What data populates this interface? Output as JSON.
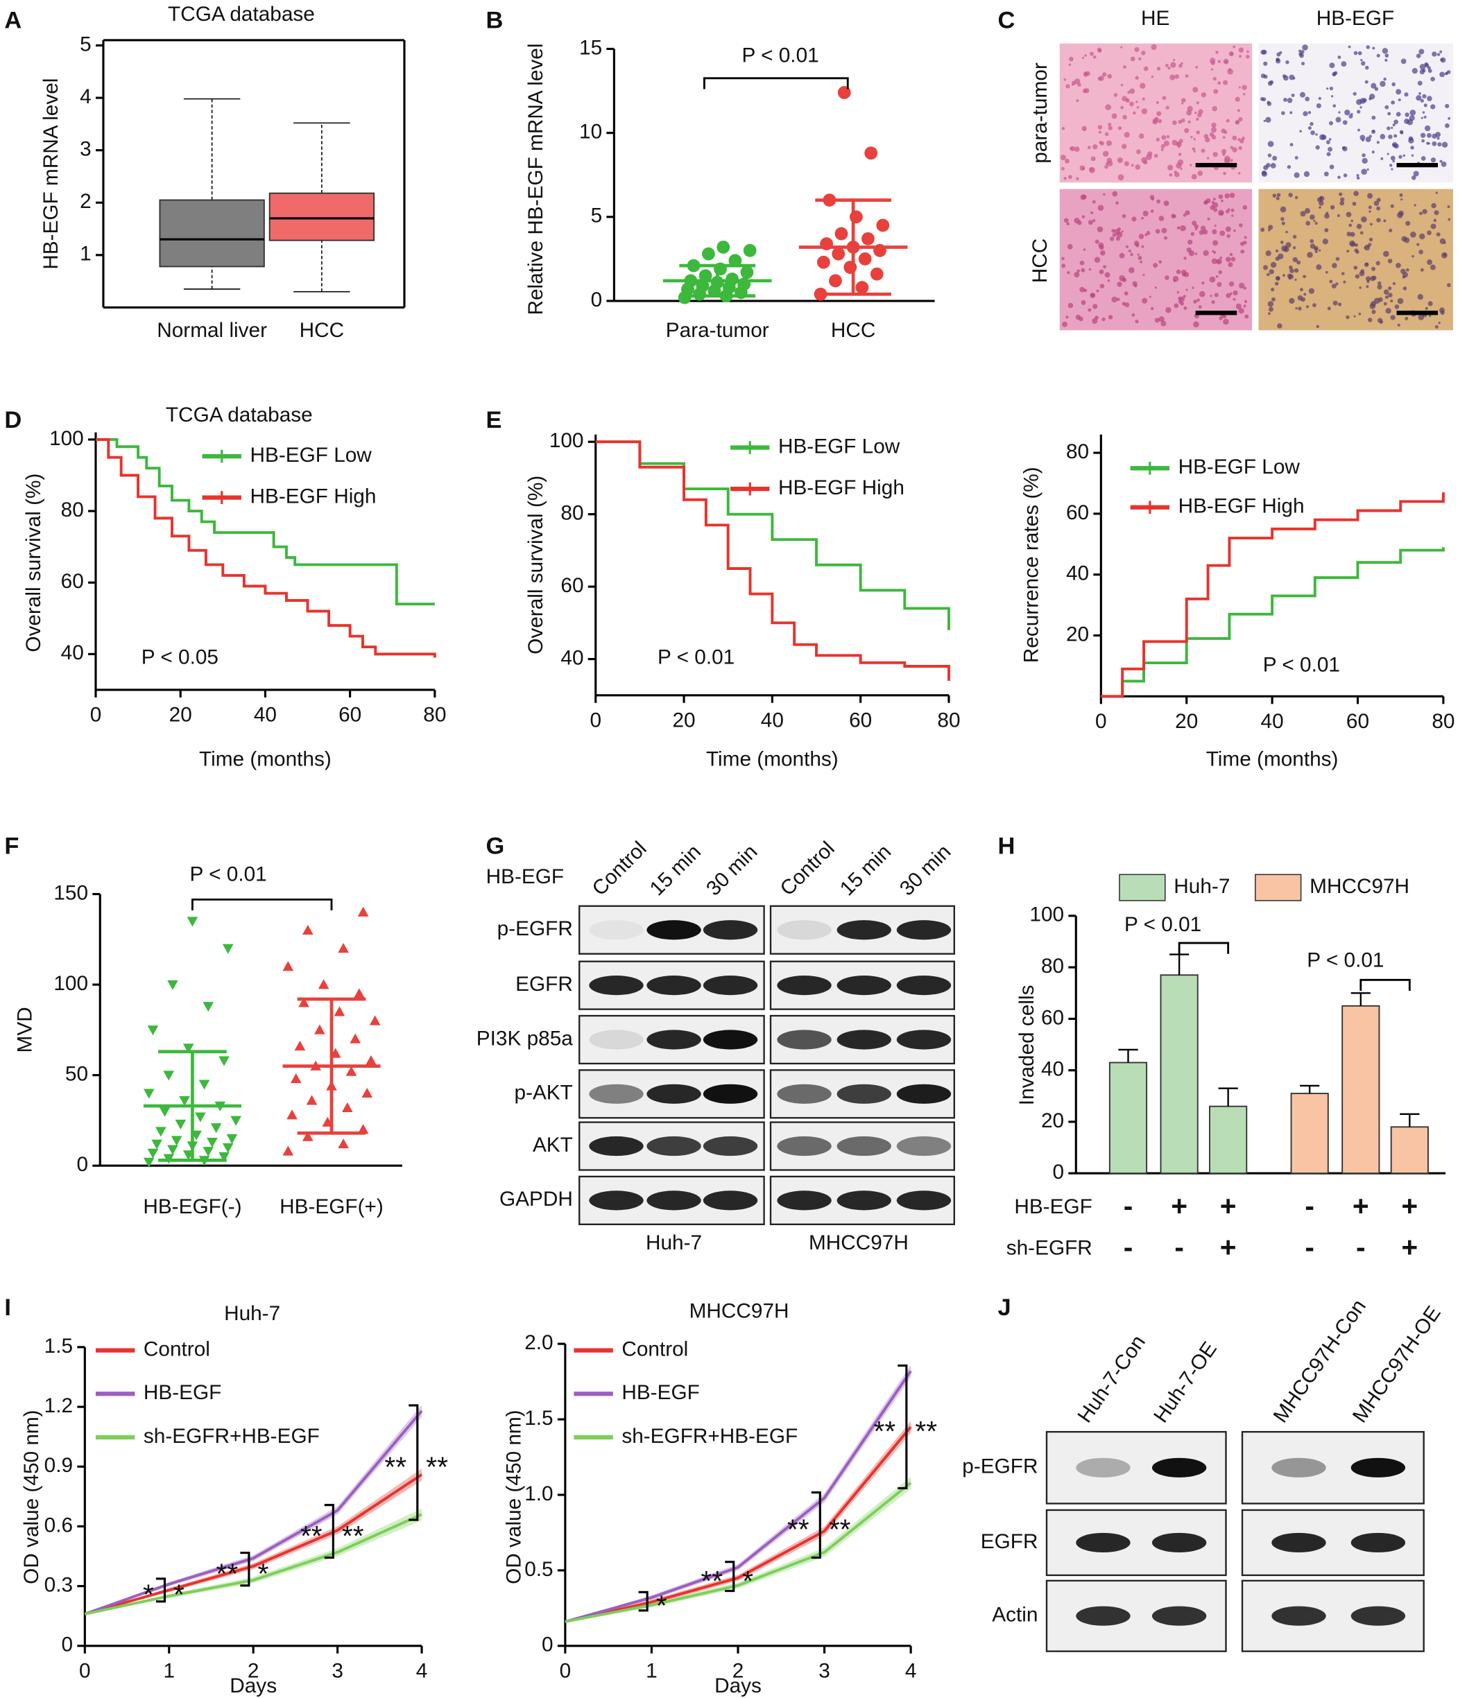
{
  "panel_labels": [
    "A",
    "B",
    "C",
    "D",
    "E",
    "F",
    "G",
    "H",
    "I",
    "J"
  ],
  "histology": {
    "columns": [
      "HE",
      "HB-EGF"
    ],
    "rows": [
      "para-tumor",
      "HCC"
    ]
  },
  "blots": [
    {
      "treatment": "HB-EGF",
      "lanes": [
        "Control",
        "15 min",
        "30 min",
        "Control",
        "15 min",
        "30 min"
      ],
      "rows": [
        "p-EGFR",
        "EGFR",
        "PI3K p85a",
        "p-AKT",
        "AKT",
        "GAPDH"
      ],
      "cells": [
        "Huh-7",
        "MHCC97H"
      ]
    },
    {
      "lanes": [
        "Huh-7-Con",
        "Huh-7-OE",
        "MHCC97H-Con",
        "MHCC97H-OE"
      ],
      "rows": [
        "p-EGFR",
        "EGFR",
        "Actin"
      ]
    }
  ],
  "chart_data": [
    {
      "type": "box",
      "title": "TCGA database",
      "y_label": "HB-EGF mRNA level",
      "categories": [
        "Normal liver",
        "HCC"
      ],
      "boxes": [
        {
          "color": "#7f7f7f",
          "min": 0.35,
          "q1": 0.78,
          "median": 1.3,
          "q3": 2.05,
          "max": 3.98
        },
        {
          "color": "#f06a6a",
          "min": 0.3,
          "q1": 1.28,
          "median": 1.7,
          "q3": 2.18,
          "max": 3.52
        }
      ],
      "ylim": [
        0,
        5.1
      ],
      "yticks": [
        1,
        2,
        3,
        4,
        5
      ]
    },
    {
      "type": "strip",
      "y_label": "Relative HB-EGF mRNA level",
      "categories": [
        "Para-tumor",
        "HCC"
      ],
      "annotations": [
        "P < 0.01"
      ],
      "series": [
        {
          "color": "#3cb83c",
          "marker": "circle",
          "values": [
            0.2,
            0.3,
            0.4,
            0.5,
            0.6,
            0.7,
            0.8,
            0.9,
            1.0,
            1.1,
            1.2,
            1.3,
            1.5,
            1.7,
            1.9,
            2.1,
            2.4,
            2.8,
            3.0,
            3.2
          ],
          "mean": 1.2,
          "sd": 0.9
        },
        {
          "color": "#e8413c",
          "marker": "circle",
          "values": [
            0.4,
            0.8,
            1.2,
            1.6,
            2.0,
            2.3,
            2.5,
            2.8,
            3.0,
            3.2,
            3.4,
            3.7,
            4.0,
            4.5,
            5.0,
            6.0,
            8.8,
            12.4
          ],
          "mean": 3.2,
          "sd": 2.8
        }
      ],
      "ylim": [
        0,
        15
      ],
      "yticks": [
        0,
        5,
        10,
        15
      ]
    },
    {
      "type": "line",
      "step": true,
      "title": "TCGA database",
      "x_label": "Time (months)",
      "y_label": "Overall survival (%)",
      "annotations": [
        "P < 0.05"
      ],
      "series": [
        {
          "name": "HB-EGF Low",
          "color": "#3cb83c",
          "x": [
            0,
            5,
            10,
            12,
            15,
            18,
            22,
            25,
            28,
            40,
            42,
            45,
            47,
            70,
            71,
            80
          ],
          "values": [
            100,
            98,
            95,
            92,
            87,
            83,
            80,
            77,
            74,
            74,
            70,
            67,
            65,
            65,
            54,
            54
          ]
        },
        {
          "name": "HB-EGF High",
          "color": "#e8332d",
          "x": [
            0,
            3,
            6,
            10,
            14,
            18,
            22,
            26,
            30,
            35,
            40,
            45,
            50,
            55,
            60,
            63,
            66,
            80
          ],
          "values": [
            100,
            95,
            90,
            84,
            78,
            73,
            69,
            65,
            62,
            59,
            57,
            55,
            52,
            48,
            45,
            42,
            40,
            39
          ]
        }
      ],
      "xlim": [
        0,
        80
      ],
      "xticks": [
        0,
        20,
        40,
        60,
        80
      ],
      "ylim": [
        30,
        102
      ],
      "yticks": [
        40,
        60,
        80,
        100
      ]
    },
    {
      "type": "line",
      "step": true,
      "x_label": "Time (months)",
      "y_label": "Overall survival (%)",
      "annotations": [
        "P < 0.01"
      ],
      "series": [
        {
          "name": "HB-EGF Low",
          "color": "#3cb83c",
          "x": [
            0,
            4,
            10,
            20,
            30,
            40,
            50,
            60,
            70,
            80
          ],
          "values": [
            100,
            100,
            94,
            87,
            80,
            73,
            66,
            59,
            54,
            48
          ]
        },
        {
          "name": "HB-EGF High",
          "color": "#e8332d",
          "x": [
            0,
            4,
            10,
            20,
            25,
            30,
            35,
            40,
            45,
            50,
            60,
            70,
            80
          ],
          "values": [
            100,
            100,
            93,
            84,
            77,
            65,
            58,
            50,
            44,
            41,
            39,
            38,
            34
          ]
        }
      ],
      "xlim": [
        0,
        80
      ],
      "xticks": [
        0,
        20,
        40,
        60,
        80
      ],
      "ylim": [
        30,
        102
      ],
      "yticks": [
        40,
        60,
        80,
        100
      ]
    },
    {
      "type": "line",
      "step": true,
      "x_label": "Time (months)",
      "y_label": "Recurrence rates (%)",
      "annotations": [
        "P < 0.01"
      ],
      "series": [
        {
          "name": "HB-EGF Low",
          "color": "#3cb83c",
          "x": [
            0,
            5,
            10,
            20,
            30,
            40,
            50,
            60,
            70,
            80
          ],
          "values": [
            0,
            5,
            11,
            19,
            27,
            33,
            39,
            44,
            48,
            49
          ]
        },
        {
          "name": "HB-EGF High",
          "color": "#e8332d",
          "x": [
            0,
            5,
            10,
            20,
            25,
            30,
            40,
            50,
            60,
            70,
            80
          ],
          "values": [
            0,
            9,
            18,
            32,
            43,
            52,
            55,
            58,
            61,
            64,
            67
          ]
        }
      ],
      "xlim": [
        0,
        80
      ],
      "xticks": [
        0,
        20,
        40,
        60,
        80
      ],
      "ylim": [
        0,
        86
      ],
      "yticks": [
        20,
        40,
        60,
        80
      ]
    },
    {
      "type": "strip",
      "y_label": "MVD",
      "categories": [
        "HB-EGF(-)",
        "HB-EGF(+)"
      ],
      "annotations": [
        "P < 0.01"
      ],
      "series": [
        {
          "color": "#3cb83c",
          "marker": "triangle-down",
          "values": [
            2,
            3,
            4,
            5,
            6,
            7,
            8,
            9,
            10,
            11,
            12,
            13,
            14,
            15,
            17,
            19,
            21,
            23,
            25,
            27,
            30,
            33,
            36,
            40,
            45,
            50,
            58,
            65,
            75,
            88,
            100,
            120,
            135
          ],
          "mean": 33,
          "sd": 30
        },
        {
          "color": "#e8413c",
          "marker": "triangle-up",
          "values": [
            8,
            12,
            16,
            20,
            24,
            28,
            32,
            36,
            40,
            44,
            48,
            52,
            55,
            58,
            62,
            66,
            70,
            75,
            80,
            85,
            90,
            95,
            100,
            110,
            120,
            130,
            140
          ],
          "mean": 55,
          "sd": 37
        }
      ],
      "ylim": [
        0,
        150
      ],
      "yticks": [
        0,
        50,
        100,
        150
      ]
    },
    {
      "type": "bar",
      "y_label": "Invaded cells",
      "annotations": [
        "P < 0.01",
        "P < 0.01"
      ],
      "series": [
        {
          "name": "Huh-7",
          "color": "#b9ddb6",
          "values": [
            43,
            77,
            26
          ],
          "errors": [
            5,
            8,
            7
          ]
        },
        {
          "name": "MHCC97H",
          "color": "#f8c4a3",
          "values": [
            31,
            65,
            18
          ],
          "errors": [
            3,
            5,
            5
          ]
        }
      ],
      "conditions": [
        {
          "name": "HB-EGF",
          "values": [
            "-",
            "+",
            "+",
            "-",
            "+",
            "+"
          ]
        },
        {
          "name": "sh-EGFR",
          "values": [
            "-",
            "-",
            "+",
            "-",
            "-",
            "+"
          ]
        }
      ],
      "ylim": [
        0,
        100
      ],
      "yticks": [
        0,
        20,
        40,
        60,
        80,
        100
      ]
    },
    {
      "type": "line",
      "title": "Huh-7",
      "x_label": "Days",
      "y_label": "OD value (450 nm)",
      "x": [
        0,
        1,
        2,
        3,
        4
      ],
      "annotations": [
        "*",
        "*",
        "**",
        "*",
        "**",
        "**",
        "**",
        "**"
      ],
      "series": [
        {
          "name": "Control",
          "color": "#e8332d",
          "values": [
            0.16,
            0.28,
            0.4,
            0.58,
            0.86
          ],
          "errors": [
            0,
            0.01,
            0.015,
            0.02,
            0.03
          ]
        },
        {
          "name": "HB-EGF",
          "color": "#9b5fc0",
          "values": [
            0.16,
            0.31,
            0.44,
            0.68,
            1.18
          ],
          "errors": [
            0,
            0.01,
            0.015,
            0.02,
            0.03
          ]
        },
        {
          "name": "sh-EGFR+HB-EGF",
          "color": "#7dcf5a",
          "values": [
            0.16,
            0.25,
            0.33,
            0.47,
            0.66
          ],
          "errors": [
            0,
            0.01,
            0.015,
            0.02,
            0.03
          ]
        }
      ],
      "xlim": [
        0,
        4
      ],
      "xticks": [
        0,
        1,
        2,
        3,
        4
      ],
      "ylim": [
        0,
        1.5
      ],
      "yticks": [
        0,
        0.3,
        0.6,
        0.9,
        1.2,
        1.5
      ]
    },
    {
      "type": "line",
      "title": "MHCC97H",
      "x_label": "Days",
      "y_label": "OD value (450 nm)",
      "x": [
        0,
        1,
        2,
        3,
        4
      ],
      "annotations": [
        "*",
        "**",
        "*",
        "**",
        "**",
        "**",
        "**"
      ],
      "series": [
        {
          "name": "Control",
          "color": "#e8332d",
          "values": [
            0.16,
            0.29,
            0.45,
            0.76,
            1.45
          ],
          "errors": [
            0,
            0.015,
            0.02,
            0.03,
            0.04
          ]
        },
        {
          "name": "HB-EGF",
          "color": "#9b5fc0",
          "values": [
            0.16,
            0.32,
            0.52,
            0.98,
            1.82
          ],
          "errors": [
            0,
            0.015,
            0.02,
            0.03,
            0.04
          ]
        },
        {
          "name": "sh-EGFR+HB-EGF",
          "color": "#7dcf5a",
          "values": [
            0.16,
            0.27,
            0.4,
            0.62,
            1.08
          ],
          "errors": [
            0,
            0.015,
            0.02,
            0.03,
            0.04
          ]
        }
      ],
      "xlim": [
        0,
        4
      ],
      "xticks": [
        0,
        1,
        2,
        3,
        4
      ],
      "ylim": [
        0,
        2
      ],
      "yticks": [
        0,
        0.5,
        {
          "value": 1,
          "label": "1.0"
        },
        1.5,
        {
          "value": 2,
          "label": "2.0"
        }
      ]
    }
  ]
}
